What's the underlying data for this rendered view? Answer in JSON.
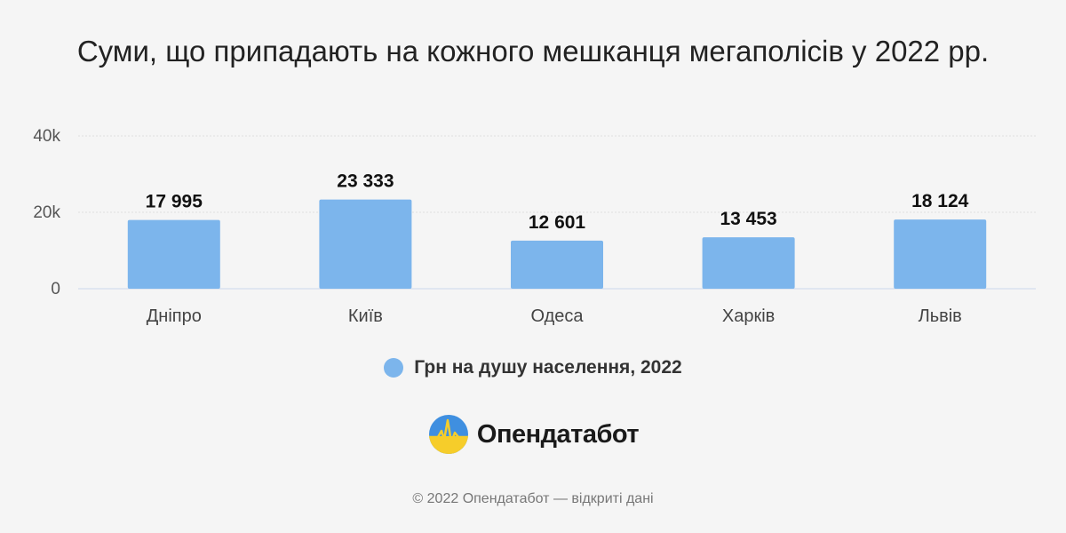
{
  "chart_data": {
    "type": "bar",
    "title": "Суми, що припадають на кожного мешканця мегаполісів у 2022 рр.",
    "categories": [
      "Дніпро",
      "Київ",
      "Одеса",
      "Харків",
      "Львів"
    ],
    "series": [
      {
        "name": "Грн на душу населення, 2022",
        "values": [
          17995,
          23333,
          12601,
          13453,
          18124
        ],
        "labels": [
          "17 995",
          "23 333",
          "12 601",
          "13 453",
          "18 124"
        ]
      }
    ],
    "yticks": [
      {
        "value": 0,
        "label": "0"
      },
      {
        "value": 20000,
        "label": "20k"
      },
      {
        "value": 40000,
        "label": "40k"
      }
    ],
    "ylim": [
      0,
      40000
    ],
    "grid": true,
    "legend_position": "bottom-center",
    "colors": {
      "bar": "#7cb5ec",
      "grid": "#e0e0e0",
      "axis": "#ccd6eb"
    }
  },
  "brand": {
    "name": "Опендатабот",
    "logo_icon": "opendatabot-logo-icon"
  },
  "footer": "© 2022 Опендатабот — відкриті дані"
}
